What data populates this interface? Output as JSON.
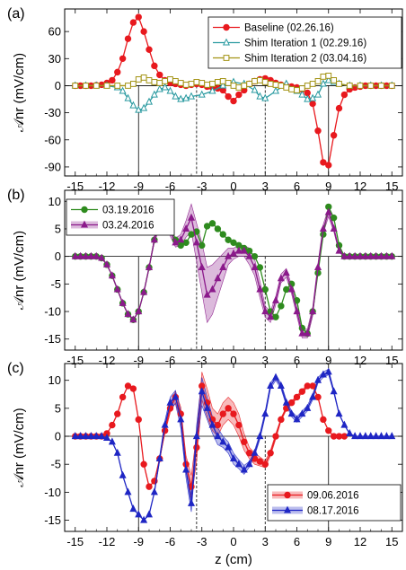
{
  "chart_data": [
    {
      "type": "line",
      "panel_label": "(a)",
      "ylabel": "𝒜nr (mV/cm)",
      "xlabel": "",
      "xlim": [
        -16,
        16
      ],
      "ylim": [
        -100,
        85
      ],
      "xticks": [
        -15,
        -12,
        -9,
        -6,
        -3,
        0,
        3,
        6,
        9,
        12,
        15
      ],
      "yticks": [
        60,
        30,
        0,
        -30,
        -60,
        -90
      ],
      "legend_position": "top-right",
      "vlines": [
        {
          "x": -9,
          "style": "solid"
        },
        {
          "x": -3.5,
          "style": "dashed"
        },
        {
          "x": 3,
          "style": "dashed"
        },
        {
          "x": 9,
          "style": "solid"
        }
      ],
      "series": [
        {
          "name": "Baseline (02.26.16)",
          "color": "#e8191e",
          "marker": "circle",
          "x": [
            -15,
            -14.5,
            -14,
            -13.5,
            -13,
            -12.5,
            -12,
            -11.5,
            -11,
            -10.5,
            -10,
            -9.5,
            -9,
            -8.5,
            -8,
            -7.5,
            -7,
            -6.5,
            -6,
            -5.5,
            -5,
            -4.5,
            -4,
            -3.5,
            -3,
            -2.5,
            -2,
            -1.5,
            -1,
            -0.5,
            0,
            0.5,
            1,
            1.5,
            2,
            2.5,
            3,
            3.5,
            4,
            4.5,
            5,
            5.5,
            6,
            6.5,
            7,
            7.5,
            8,
            8.5,
            9,
            9.5,
            10,
            10.5,
            11,
            11.5,
            12,
            12.5,
            13,
            13.5,
            14,
            14.5,
            15
          ],
          "y": [
            0,
            0,
            0,
            0,
            0.5,
            1,
            3,
            6,
            15,
            30,
            52,
            70,
            76,
            60,
            40,
            22,
            12,
            6,
            3,
            2,
            1,
            0,
            1,
            2,
            1,
            -1,
            -2,
            -3,
            -5,
            -12,
            -17,
            -10,
            -5,
            2,
            5,
            7,
            8,
            6,
            3,
            1,
            0,
            -1,
            -2,
            -4,
            -8,
            -20,
            -50,
            -85,
            -88,
            -55,
            -25,
            -10,
            -4,
            -2,
            -1,
            0,
            0,
            0,
            0,
            0,
            0
          ]
        },
        {
          "name": "Shim Iteration 1 (02.29.16)",
          "color": "#2a9aa0",
          "marker": "triangle-open",
          "x": [
            -15,
            -14,
            -13,
            -12,
            -11,
            -10.5,
            -10,
            -9.5,
            -9,
            -8.5,
            -8,
            -7.5,
            -7,
            -6.5,
            -6,
            -5.5,
            -5,
            -4.5,
            -4,
            -3,
            -2,
            -1,
            0,
            1,
            2,
            2.5,
            3,
            4,
            5,
            6,
            6.5,
            7,
            7.5,
            8,
            8.5,
            9,
            9.5,
            10,
            11,
            12,
            13,
            14,
            15
          ],
          "y": [
            0,
            0,
            0,
            0,
            -2,
            -6,
            -14,
            -22,
            -27,
            -25,
            -18,
            -10,
            -4,
            -2,
            -6,
            -12,
            -15,
            -14,
            -12,
            -10,
            -6,
            0,
            4,
            2,
            -5,
            -12,
            -14,
            -6,
            2,
            -6,
            -10,
            -15,
            -14,
            -10,
            2,
            6,
            4,
            2,
            0,
            0,
            0,
            0,
            0
          ]
        },
        {
          "name": "Shim Iteration 2 (03.04.16)",
          "color": "#a39314",
          "marker": "square-open",
          "x": [
            -15,
            -14,
            -13,
            -12,
            -11,
            -10,
            -9.5,
            -9,
            -8.5,
            -8,
            -7.5,
            -7,
            -6.5,
            -6,
            -5.5,
            -5,
            -4.5,
            -4,
            -3.5,
            -3,
            -2.5,
            -2,
            -1.5,
            -1,
            -0.5,
            0,
            0.5,
            1,
            1.5,
            2,
            2.5,
            3,
            3.5,
            4,
            4.5,
            5,
            5.5,
            6,
            6.5,
            7,
            7.5,
            8,
            8.5,
            9,
            9.5,
            10,
            11,
            12,
            13,
            14,
            15
          ],
          "y": [
            0,
            0,
            0,
            0,
            0,
            0,
            2,
            7,
            9,
            6,
            4,
            3,
            5,
            7,
            5,
            3,
            1,
            2,
            4,
            3,
            1,
            2,
            4,
            5,
            3,
            0,
            -2,
            0,
            2,
            5,
            6,
            4,
            2,
            1,
            0,
            -2,
            -4,
            -5,
            -3,
            0,
            2,
            5,
            10,
            11,
            6,
            2,
            0,
            0,
            0,
            0,
            0
          ]
        }
      ]
    },
    {
      "type": "line",
      "panel_label": "(b)",
      "ylabel": "𝒜nr (mV/cm)",
      "xlabel": "",
      "xlim": [
        -16,
        16
      ],
      "ylim": [
        -17,
        12
      ],
      "xticks": [
        -15,
        -12,
        -9,
        -6,
        -3,
        0,
        3,
        6,
        9,
        12,
        15
      ],
      "yticks": [
        10,
        5,
        0,
        -5,
        -10,
        -15
      ],
      "legend_position": "top-left",
      "vlines": [
        {
          "x": -9,
          "style": "solid"
        },
        {
          "x": -3.5,
          "style": "dashed"
        },
        {
          "x": 3,
          "style": "dashed"
        },
        {
          "x": 9,
          "style": "solid"
        }
      ],
      "series": [
        {
          "name": "03.19.2016",
          "color": "#2e8b1e",
          "marker": "circle",
          "x": [
            -15,
            -14.5,
            -14,
            -13.5,
            -13,
            -12.5,
            -12,
            -11.5,
            -11,
            -10.5,
            -10,
            -9.5,
            -9,
            -8.5,
            -8,
            -7.5,
            -7,
            -6.5,
            -6,
            -5.5,
            -5,
            -4.5,
            -4,
            -3.5,
            -3,
            -2.5,
            -2,
            -1.5,
            -1,
            -0.5,
            0,
            0.5,
            1,
            1.5,
            2,
            2.5,
            3,
            3.5,
            4,
            4.5,
            5,
            5.5,
            6,
            6.5,
            7,
            7.5,
            8,
            8.5,
            9,
            9.5,
            10,
            10.5,
            11,
            11.5,
            12,
            12.5,
            13,
            13.5,
            14,
            14.5,
            15
          ],
          "y": [
            0,
            0,
            0,
            0,
            0,
            -0.3,
            -1.5,
            -3.5,
            -6,
            -8.5,
            -10.5,
            -11.5,
            -10,
            -6.5,
            -2,
            3,
            6.5,
            7.5,
            5.5,
            3,
            2,
            2.5,
            4,
            4.5,
            2,
            5.5,
            6,
            5,
            4,
            3,
            2.5,
            2,
            1.5,
            1,
            0,
            -2,
            -6,
            -10,
            -11,
            -9,
            -6,
            -5,
            -8,
            -13,
            -14,
            -10,
            -3,
            4,
            9,
            7,
            2,
            0,
            0,
            0,
            0,
            0,
            0,
            0,
            0,
            0,
            0
          ]
        },
        {
          "name": "03.24.2016",
          "color": "#8b1a8b",
          "marker": "triangle",
          "band": true,
          "band_halfwidth": [
            0,
            0,
            0,
            0,
            0,
            0,
            0,
            0,
            0,
            0,
            0,
            0,
            0,
            0,
            0,
            0.5,
            0.8,
            0.8,
            0.8,
            0.8,
            1,
            1.5,
            2.5,
            3.5,
            4.5,
            5,
            4.5,
            3.5,
            2.5,
            1.5,
            1,
            1,
            1,
            1.5,
            1.5,
            1.5,
            1,
            1,
            0.8,
            0.8,
            0.8,
            0.8,
            0.8,
            0.8,
            0.8,
            0.8,
            0.8,
            0.8,
            0.8,
            0.5,
            0.3,
            0,
            0,
            0,
            0,
            0,
            0,
            0,
            0,
            0,
            0
          ],
          "x": [
            -15,
            -14.5,
            -14,
            -13.5,
            -13,
            -12.5,
            -12,
            -11.5,
            -11,
            -10.5,
            -10,
            -9.5,
            -9,
            -8.5,
            -8,
            -7.5,
            -7,
            -6.5,
            -6,
            -5.5,
            -5,
            -4.5,
            -4,
            -3.5,
            -3,
            -2.5,
            -2,
            -1.5,
            -1,
            -0.5,
            0,
            0.5,
            1,
            1.5,
            2,
            2.5,
            3,
            3.5,
            4,
            4.5,
            5,
            5.5,
            6,
            6.5,
            7,
            7.5,
            8,
            8.5,
            9,
            9.5,
            10,
            10.5,
            11,
            11.5,
            12,
            12.5,
            13,
            13.5,
            14,
            14.5,
            15
          ],
          "y": [
            0,
            0,
            0,
            0,
            0,
            -0.3,
            -1.5,
            -3.5,
            -6,
            -8.5,
            -10.5,
            -11.5,
            -10,
            -6.5,
            -2,
            3,
            6,
            6.5,
            4.5,
            2.5,
            3,
            5,
            7,
            2.5,
            -2,
            -7,
            -6,
            -4,
            -2,
            0,
            0.5,
            1,
            1,
            0,
            -2,
            -6,
            -10,
            -11,
            -8,
            -4,
            -3,
            -6,
            -10,
            -14,
            -14,
            -10,
            -2,
            5,
            8,
            5,
            1,
            0,
            0,
            0,
            0,
            0,
            0,
            0,
            0,
            0,
            0
          ]
        }
      ]
    },
    {
      "type": "line",
      "panel_label": "(c)",
      "ylabel": "𝒜nr (mV/cm)",
      "xlabel": "z (cm)",
      "xlim": [
        -16,
        16
      ],
      "ylim": [
        -17,
        13
      ],
      "xticks": [
        -15,
        -12,
        -9,
        -6,
        -3,
        0,
        3,
        6,
        9,
        12,
        15
      ],
      "yticks": [
        10,
        5,
        0,
        -5,
        -10,
        -15
      ],
      "legend_position": "bottom-right",
      "vlines": [
        {
          "x": -9,
          "style": "solid"
        },
        {
          "x": -3.5,
          "style": "dashed"
        },
        {
          "x": 3,
          "style": "dashed"
        },
        {
          "x": 9,
          "style": "solid"
        }
      ],
      "series": [
        {
          "name": "09.06.2016",
          "color": "#e8191e",
          "marker": "circle",
          "band": true,
          "band_halfwidth": [
            0,
            0,
            0,
            0,
            0,
            0,
            0,
            0,
            0,
            0,
            0,
            0,
            0,
            0,
            0,
            0,
            0,
            0.5,
            0.8,
            1,
            1.2,
            1.5,
            2,
            2.5,
            2.5,
            2.5,
            2,
            2,
            2,
            2,
            2,
            2,
            1.5,
            1,
            1,
            0.8,
            0.6,
            0.5,
            0.5,
            0.3,
            0.3,
            0.3,
            0.3,
            0.3,
            0.3,
            0,
            0,
            0,
            0,
            0,
            0,
            0
          ],
          "x": [
            -15,
            -14.5,
            -14,
            -13.5,
            -13,
            -12.5,
            -12,
            -11.5,
            -11,
            -10.5,
            -10,
            -9.5,
            -9,
            -8.5,
            -8,
            -7.5,
            -7,
            -6.5,
            -6,
            -5.5,
            -5,
            -4.5,
            -4,
            -3.5,
            -3,
            -2.5,
            -2,
            -1.5,
            -1,
            -0.5,
            0,
            0.5,
            1,
            1.5,
            2,
            2.5,
            3,
            3.5,
            4,
            4.5,
            5,
            5.5,
            6,
            6.5,
            7,
            7.5,
            8,
            8.5,
            9,
            9.5,
            10,
            10.5
          ],
          "y": [
            0,
            0,
            0,
            0,
            0,
            0,
            0.5,
            2,
            4,
            7,
            9,
            8.5,
            3,
            -5,
            -9,
            -8,
            -4,
            1,
            5,
            7,
            4,
            -5,
            -9,
            -2,
            9,
            6,
            3,
            2,
            4,
            5,
            4,
            2,
            -1,
            -3,
            -4,
            -4.5,
            -5,
            -3,
            0,
            3,
            5,
            6,
            7,
            8,
            9,
            9,
            7,
            3,
            1,
            0,
            0,
            0
          ]
        },
        {
          "name": "08.17.2016",
          "color": "#1f26c4",
          "marker": "triangle",
          "band": true,
          "band_halfwidth": [
            0,
            0,
            0,
            0,
            0,
            0,
            0,
            0,
            0,
            0,
            0,
            0,
            0,
            0,
            0,
            0,
            0.5,
            0.8,
            1,
            1.2,
            1.5,
            1.5,
            1.5,
            2,
            2.5,
            2,
            1.5,
            1.5,
            1,
            1,
            1,
            0.8,
            0.8,
            0.5,
            0.5,
            0.5,
            0.5,
            0.5,
            0.5,
            0.5,
            0.5,
            0.5,
            0.5,
            0.5,
            0.5,
            0.5,
            0.5,
            0.5,
            0.5,
            0.3,
            0,
            0,
            0,
            0,
            0,
            0,
            0,
            0,
            0,
            0,
            0
          ],
          "x": [
            -15,
            -14.5,
            -14,
            -13.5,
            -13,
            -12.5,
            -12,
            -11.5,
            -11,
            -10.5,
            -10,
            -9.5,
            -9,
            -8.5,
            -8,
            -7.5,
            -7,
            -6.5,
            -6,
            -5.5,
            -5,
            -4.5,
            -4,
            -3.5,
            -3,
            -2.5,
            -2,
            -1.5,
            -1,
            -0.5,
            0,
            0.5,
            1,
            1.5,
            2,
            2.5,
            3,
            3.5,
            4,
            4.5,
            5,
            5.5,
            6,
            6.5,
            7,
            7.5,
            8,
            8.5,
            9,
            9.5,
            10,
            10.5,
            11,
            11.5,
            12,
            12.5,
            13,
            13.5,
            14,
            14.5,
            15
          ],
          "y": [
            0,
            0,
            0,
            0,
            0,
            0,
            -0.3,
            -1,
            -3,
            -7,
            -10,
            -13,
            -14,
            -15,
            -14,
            -10,
            -4,
            2,
            6,
            7,
            3,
            -6,
            -12,
            0,
            8,
            5,
            2,
            0,
            -1,
            -2,
            -4,
            -5,
            -6,
            -5,
            -3,
            0,
            4,
            9,
            10.5,
            9,
            6,
            4,
            3,
            4,
            5,
            7,
            10,
            11,
            11.5,
            8,
            4,
            2,
            0.5,
            0,
            0,
            0,
            0,
            0,
            0,
            0,
            0
          ]
        }
      ]
    }
  ]
}
